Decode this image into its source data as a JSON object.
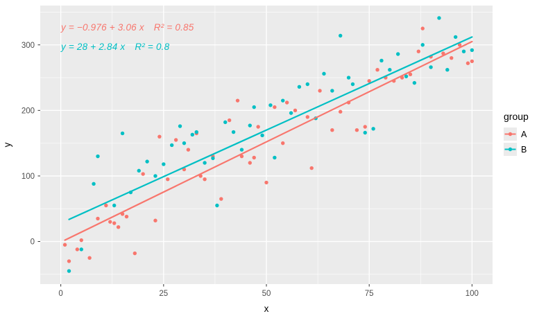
{
  "chart_data": {
    "type": "scatter",
    "title": "",
    "xlabel": "x",
    "ylabel": "y",
    "xlim": [
      -5,
      105
    ],
    "ylim": [
      -65,
      360
    ],
    "xticks": [
      0,
      25,
      50,
      75,
      100
    ],
    "yticks": [
      0,
      100,
      200,
      300
    ],
    "x_minor": [
      12.5,
      37.5,
      62.5,
      87.5
    ],
    "y_minor": [
      -50,
      50,
      150,
      250,
      350
    ],
    "grid": true,
    "panel_color": "#EBEBEB",
    "grid_color": "#FFFFFF",
    "tick_text_color": "#4D4D4D",
    "legend_title": "group",
    "legend_position": "right",
    "series": [
      {
        "name": "A",
        "color": "#F8766D",
        "fit": {
          "intercept": -0.976,
          "slope": 3.06,
          "r2": 0.85,
          "x_range": [
            1,
            100
          ],
          "equation": "y = −0.976 + 3.06 x",
          "r2_label": "R² = 0.85"
        },
        "points": [
          [
            1,
            -5
          ],
          [
            2,
            -30
          ],
          [
            4,
            -12
          ],
          [
            5,
            2
          ],
          [
            7,
            -25
          ],
          [
            9,
            35
          ],
          [
            11,
            55
          ],
          [
            12,
            30
          ],
          [
            13,
            28
          ],
          [
            14,
            22
          ],
          [
            15,
            42
          ],
          [
            16,
            38
          ],
          [
            18,
            -18
          ],
          [
            20,
            103
          ],
          [
            23,
            32
          ],
          [
            24,
            160
          ],
          [
            26,
            95
          ],
          [
            28,
            155
          ],
          [
            30,
            110
          ],
          [
            31,
            140
          ],
          [
            33,
            165
          ],
          [
            34,
            100
          ],
          [
            35,
            95
          ],
          [
            37,
            130
          ],
          [
            39,
            65
          ],
          [
            41,
            185
          ],
          [
            43,
            215
          ],
          [
            44,
            130
          ],
          [
            46,
            120
          ],
          [
            47,
            128
          ],
          [
            48,
            175
          ],
          [
            50,
            90
          ],
          [
            52,
            205
          ],
          [
            54,
            150
          ],
          [
            55,
            212
          ],
          [
            57,
            200
          ],
          [
            60,
            190
          ],
          [
            61,
            112
          ],
          [
            63,
            230
          ],
          [
            66,
            170
          ],
          [
            68,
            198
          ],
          [
            70,
            212
          ],
          [
            72,
            170
          ],
          [
            74,
            175
          ],
          [
            75,
            245
          ],
          [
            77,
            262
          ],
          [
            79,
            250
          ],
          [
            81,
            245
          ],
          [
            83,
            250
          ],
          [
            85,
            255
          ],
          [
            87,
            290
          ],
          [
            88,
            325
          ],
          [
            90,
            282
          ],
          [
            93,
            287
          ],
          [
            95,
            280
          ],
          [
            97,
            300
          ],
          [
            99,
            272
          ],
          [
            100,
            275
          ]
        ]
      },
      {
        "name": "B",
        "color": "#00BFC4",
        "fit": {
          "intercept": 28,
          "slope": 2.84,
          "r2": 0.8,
          "x_range": [
            2,
            100
          ],
          "equation": "y = 28 + 2.84 x",
          "r2_label": "R² = 0.8"
        },
        "points": [
          [
            2,
            -45
          ],
          [
            5,
            -12
          ],
          [
            8,
            88
          ],
          [
            9,
            130
          ],
          [
            13,
            55
          ],
          [
            15,
            165
          ],
          [
            17,
            75
          ],
          [
            19,
            108
          ],
          [
            21,
            122
          ],
          [
            23,
            100
          ],
          [
            25,
            118
          ],
          [
            27,
            147
          ],
          [
            29,
            176
          ],
          [
            30,
            150
          ],
          [
            32,
            163
          ],
          [
            33,
            167
          ],
          [
            35,
            120
          ],
          [
            37,
            127
          ],
          [
            38,
            55
          ],
          [
            40,
            182
          ],
          [
            42,
            167
          ],
          [
            44,
            140
          ],
          [
            46,
            177
          ],
          [
            47,
            205
          ],
          [
            49,
            162
          ],
          [
            51,
            208
          ],
          [
            52,
            128
          ],
          [
            54,
            215
          ],
          [
            56,
            196
          ],
          [
            58,
            236
          ],
          [
            60,
            240
          ],
          [
            62,
            188
          ],
          [
            64,
            256
          ],
          [
            66,
            230
          ],
          [
            68,
            314
          ],
          [
            70,
            250
          ],
          [
            71,
            240
          ],
          [
            74,
            166
          ],
          [
            76,
            172
          ],
          [
            78,
            276
          ],
          [
            80,
            262
          ],
          [
            82,
            286
          ],
          [
            84,
            252
          ],
          [
            86,
            242
          ],
          [
            88,
            300
          ],
          [
            90,
            266
          ],
          [
            92,
            341
          ],
          [
            94,
            262
          ],
          [
            96,
            312
          ],
          [
            98,
            290
          ],
          [
            100,
            292
          ]
        ]
      }
    ]
  }
}
